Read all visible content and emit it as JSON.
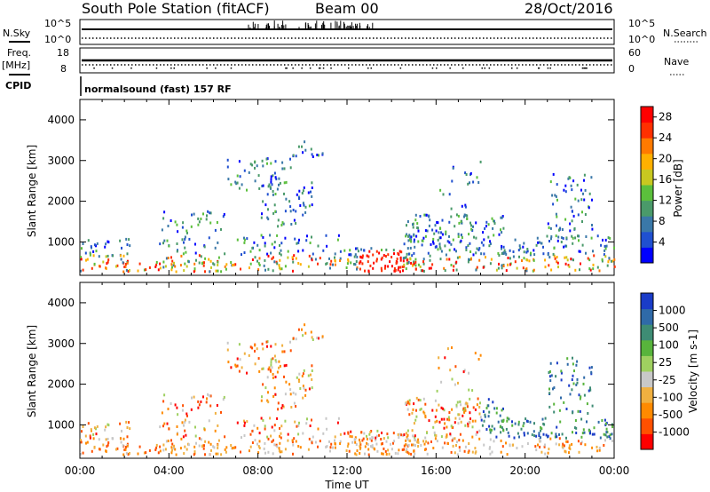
{
  "header": {
    "station": "South Pole Station (fitACF)",
    "beam": "Beam 00",
    "date": "28/Oct/2016"
  },
  "top_panels": {
    "nsky_label": "N.Sky",
    "nsearch_label": "N.Search",
    "noise_ticks": [
      "10^5",
      "10^0"
    ],
    "freq_label": "Freq.",
    "freq_unit": "[MHz]",
    "freq_ticks": [
      "18",
      "8"
    ],
    "nave_label": "Nave",
    "nave_ticks": [
      "60",
      "0"
    ],
    "cpid_label": "CPID",
    "cpid_text": "normalsound (fast) 157 RF"
  },
  "chart_data": [
    {
      "type": "heatmap",
      "quantity": "Power",
      "xlabel": "",
      "ylabel": "Slant Range [km]",
      "xlim": [
        0,
        24
      ],
      "ylim": [
        180,
        4500
      ],
      "yticks": [
        "1000",
        "2000",
        "3000",
        "4000"
      ],
      "colorbar": {
        "label": "Power [dB]",
        "ticks": [
          "4",
          "8",
          "12",
          "16",
          "20",
          "24",
          "28"
        ],
        "colors": [
          "#0000ff",
          "#2050d0",
          "#3a78a8",
          "#4a9a6a",
          "#5bbf3c",
          "#c8c820",
          "#ffb000",
          "#ff7a00",
          "#ff3000",
          "#ff0000"
        ]
      }
    },
    {
      "type": "heatmap",
      "quantity": "Velocity",
      "xlabel": "Time UT",
      "ylabel": "Slant Range [km]",
      "xlim": [
        0,
        24
      ],
      "ylim": [
        180,
        4500
      ],
      "xticks": [
        "00:00",
        "04:00",
        "08:00",
        "12:00",
        "16:00",
        "20:00",
        "00:00"
      ],
      "yticks": [
        "1000",
        "2000",
        "3000",
        "4000"
      ],
      "colorbar": {
        "label": "Velocity [m s-1]",
        "ticks": [
          "1000",
          "500",
          "100",
          "25",
          "-25",
          "-100",
          "-500",
          "-1000"
        ],
        "colors": [
          "#1a3cc8",
          "#2f6aa8",
          "#3e8c74",
          "#58b43c",
          "#9fd060",
          "#c8c8c8",
          "#f0b040",
          "#ff8a00",
          "#ff5000",
          "#ff0000"
        ]
      }
    }
  ]
}
